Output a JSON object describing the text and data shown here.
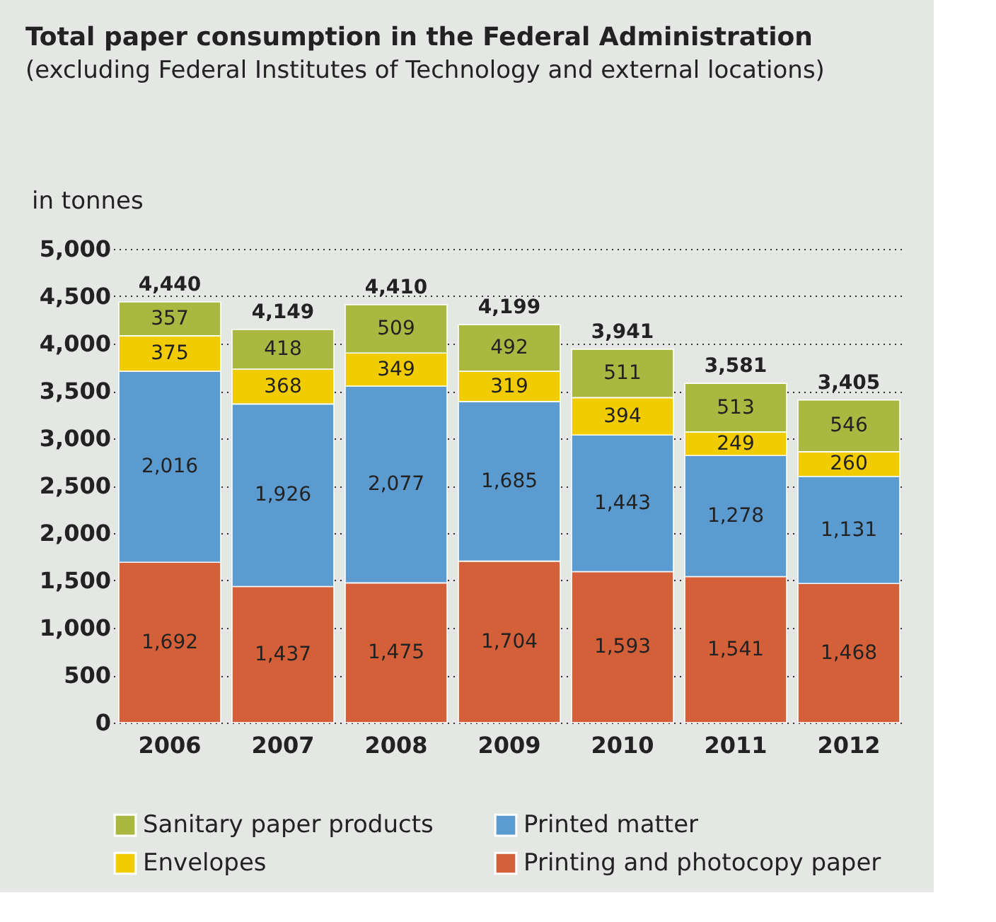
{
  "chart_data": {
    "type": "bar",
    "title": "Total paper consumption in the Federal Administration",
    "subtitle": "(excluding Federal Institutes of Technology and external locations)",
    "ylabel": "in tonnes",
    "categories": [
      "2006",
      "2007",
      "2008",
      "2009",
      "2010",
      "2011",
      "2012"
    ],
    "stacked": true,
    "series": [
      {
        "name": "Printing and photocopy paper",
        "color": "#d4603a",
        "values": [
          1692,
          1437,
          1475,
          1704,
          1593,
          1541,
          1468
        ],
        "value_labels": [
          "1,692",
          "1,437",
          "1,475",
          "1,704",
          "1,593",
          "1,541",
          "1,468"
        ]
      },
      {
        "name": "Printed matter",
        "color": "#5b9bd0",
        "values": [
          2016,
          1926,
          2077,
          1685,
          1443,
          1278,
          1131
        ],
        "value_labels": [
          "2,016",
          "1,926",
          "2,077",
          "1,685",
          "1,443",
          "1,278",
          "1,131"
        ]
      },
      {
        "name": "Envelopes",
        "color": "#f0cc00",
        "values": [
          375,
          368,
          349,
          319,
          394,
          249,
          260
        ]
      },
      {
        "name": "Sanitary paper products",
        "color": "#a8b840",
        "values": [
          357,
          418,
          509,
          492,
          511,
          513,
          546
        ]
      }
    ],
    "totals": [
      "4,440",
      "4,149",
      "4,410",
      "4,199",
      "3,941",
      "3,581",
      "3,405"
    ],
    "ylim": [
      0,
      5000
    ],
    "yticks": [
      0,
      {
        "value": 500,
        "label": "500"
      },
      {
        "value": 1000,
        "label": "1,000"
      },
      {
        "value": 1500,
        "label": "1,500"
      },
      {
        "value": 2000,
        "label": "2,000"
      },
      {
        "value": 2500,
        "label": "2,500"
      },
      {
        "value": 3000,
        "label": "3,000"
      },
      {
        "value": 3500,
        "label": "3,500"
      },
      {
        "value": 4000,
        "label": "4,000"
      },
      {
        "value": 4500,
        "label": "4,500"
      },
      {
        "value": 5000,
        "label": "5,000"
      }
    ],
    "grid": "y",
    "legend": "bottom",
    "data_labels": true
  }
}
